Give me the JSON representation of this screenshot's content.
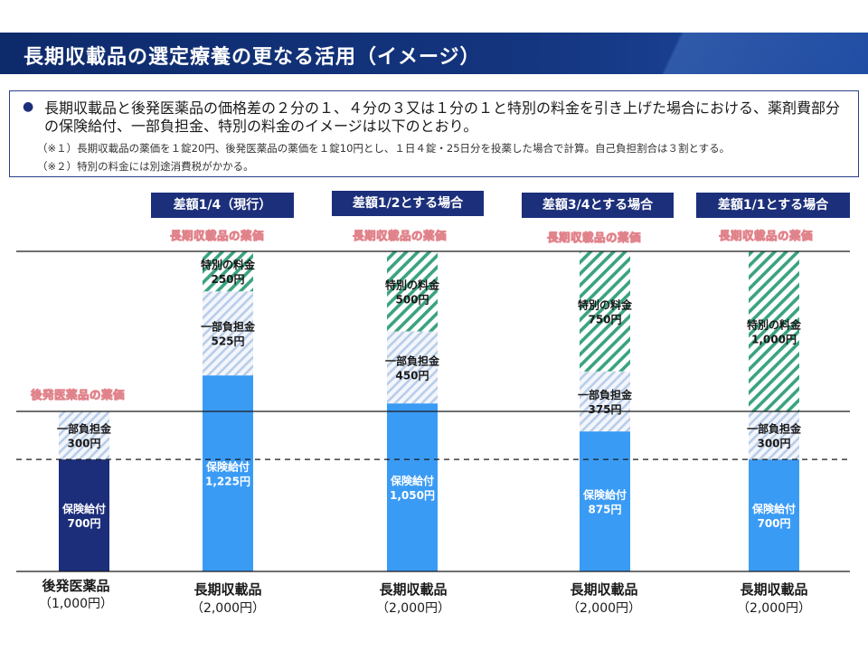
{
  "header": {
    "title": "長期収載品の選定療養の更なる活用（イメージ）"
  },
  "note": {
    "bullet": "●",
    "main": "長期収載品と後発医薬品の価格差の２分の１、４分の３又は１分の１と特別の料金を引き上げた場合における、薬剤費部分の保険給付、一部負担金、特別の料金のイメージは以下のとおり。",
    "note1": "（※１）長期収載品の薬価を１錠20円、後発医薬品の薬価を１錠10円とし、１日４錠・25日分を投薬した場合で計算。自己負担割合は３割とする。",
    "note2": "（※２）特別の料金には別途消費税がかかる。"
  },
  "scenarios": {
    "s1": "差額1/4（現行）",
    "s2": "差額1/2とする場合",
    "s3": "差額3/4とする場合",
    "s4": "差額1/1とする場合"
  },
  "reference_labels": {
    "long_listed_price": "長期収載品の薬価",
    "generic_price": "後発医薬品の薬価"
  },
  "colors": {
    "generic_insurance": "#1c2d7a",
    "insurance": "#3a9bf5",
    "copay_hatch": "#b9cde8",
    "special_hatch": "#3aa37e",
    "badge": "#1c2f7a"
  },
  "chart_data": {
    "type": "bar",
    "stacked": true,
    "unit": "円",
    "ylim": [
      0,
      2000
    ],
    "reference_lines": [
      {
        "name": "長期収載品の薬価",
        "value": 2000
      },
      {
        "name": "後発医薬品の薬価",
        "value": 1000
      }
    ],
    "categories": [
      {
        "name": "後発医薬品",
        "price": "（1,000円）"
      },
      {
        "name": "長期収載品",
        "price": "（2,000円）"
      },
      {
        "name": "長期収載品",
        "price": "（2,000円）"
      },
      {
        "name": "長期収載品",
        "price": "（2,000円）"
      },
      {
        "name": "長期収載品",
        "price": "（2,000円）"
      }
    ],
    "series": [
      {
        "name": "保険給付",
        "values": [
          700,
          1225,
          1050,
          875,
          700
        ],
        "labels": [
          "700円",
          "1,225円",
          "1,050円",
          "875円",
          "700円"
        ]
      },
      {
        "name": "一部負担金",
        "values": [
          300,
          525,
          450,
          375,
          300
        ],
        "labels": [
          "300円",
          "525円",
          "450円",
          "375円",
          "300円"
        ]
      },
      {
        "name": "特別の料金",
        "values": [
          0,
          250,
          500,
          750,
          1000
        ],
        "labels": [
          "",
          "250円",
          "500円",
          "750円",
          "1,000円"
        ]
      }
    ]
  }
}
